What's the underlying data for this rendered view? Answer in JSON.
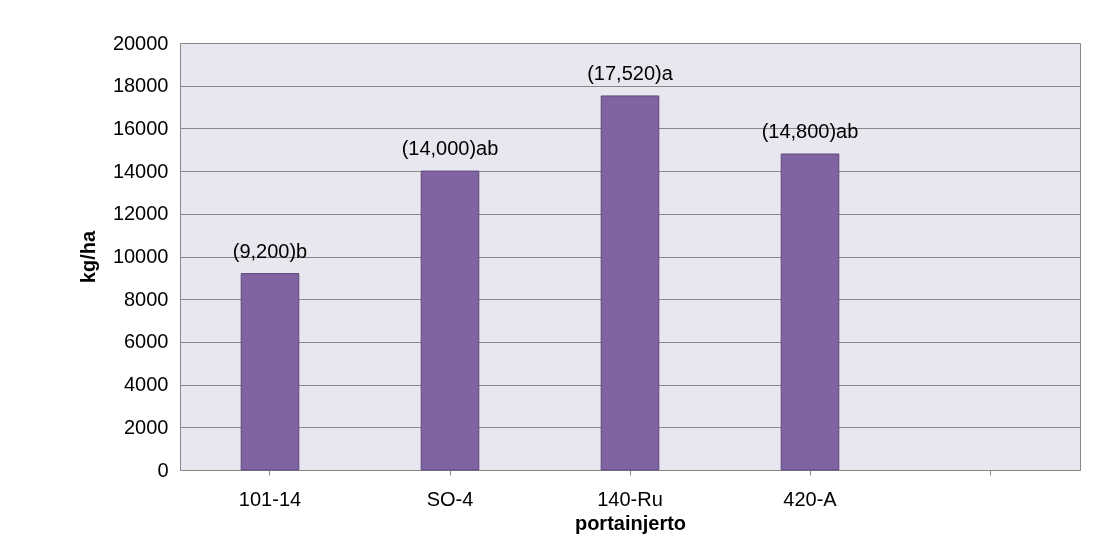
{
  "chart_data": {
    "type": "bar",
    "xlabel": "portainjerto",
    "ylabel": "kg/ha",
    "categories": [
      "101-14",
      "SO-4",
      "140-Ru",
      "420-A",
      null
    ],
    "values": [
      9200,
      14000,
      17520,
      14800,
      null
    ],
    "value_labels": [
      "(9,200)b",
      "(14,000)ab",
      "(17,520)a",
      "(14,800)ab",
      null
    ],
    "color": "#8064a2",
    "ylim": [
      0,
      20000
    ],
    "yticks": [
      0,
      2000,
      4000,
      6000,
      8000,
      10000,
      12000,
      14000,
      16000,
      18000,
      20000
    ],
    "grid": "y"
  }
}
